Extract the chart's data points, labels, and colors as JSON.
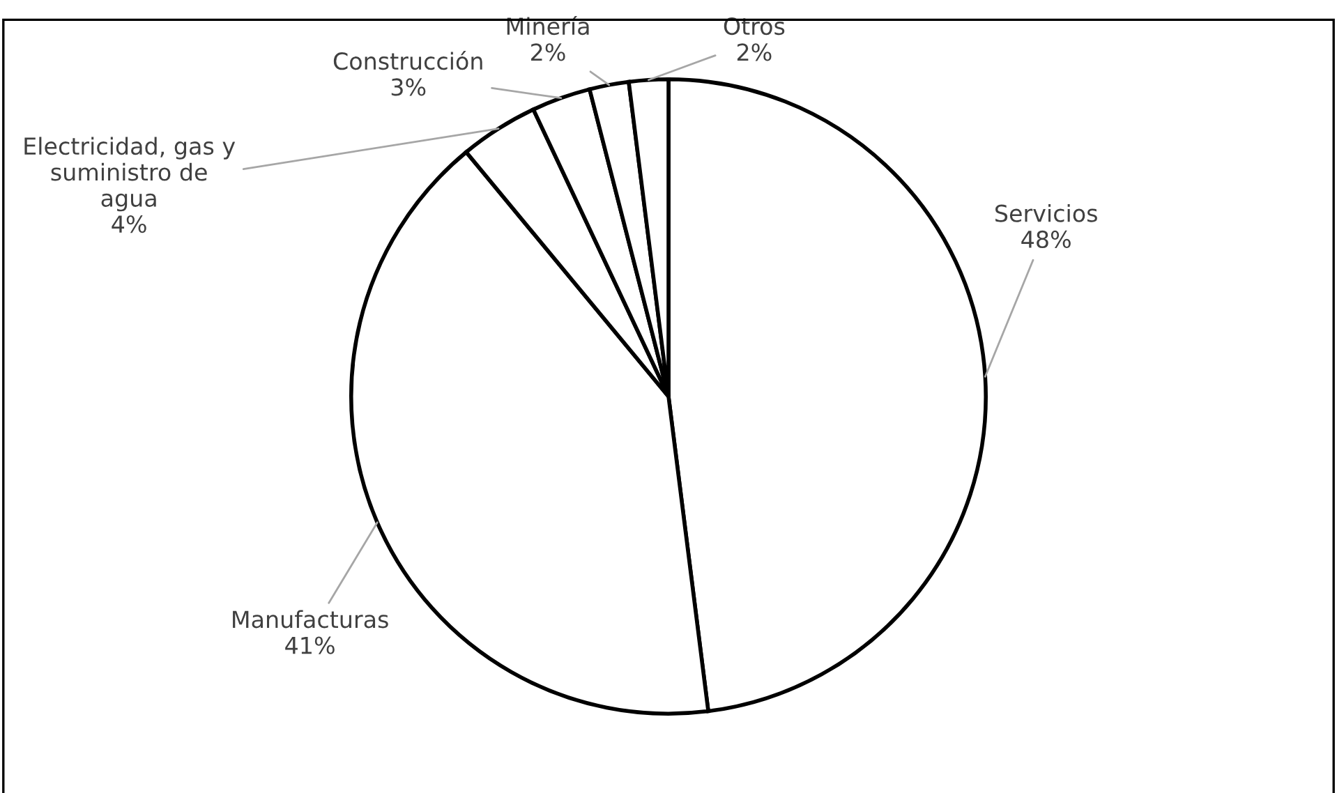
{
  "chart_data": {
    "type": "pie",
    "categories": [
      "Servicios",
      "Manufacturas",
      "Electricidad, gas y\nsuministro de\nagua",
      "Construcción",
      "Minería",
      "Otros"
    ],
    "values": [
      48,
      41,
      4,
      3,
      2,
      2
    ],
    "colors": [
      "#ffffff",
      "#ffffff",
      "#ffffff",
      "#ffffff",
      "#ffffff",
      "#ffffff"
    ],
    "value_labels": [
      "48%",
      "41%",
      "4%",
      "3%",
      "2%",
      "2%"
    ],
    "legend": false
  }
}
